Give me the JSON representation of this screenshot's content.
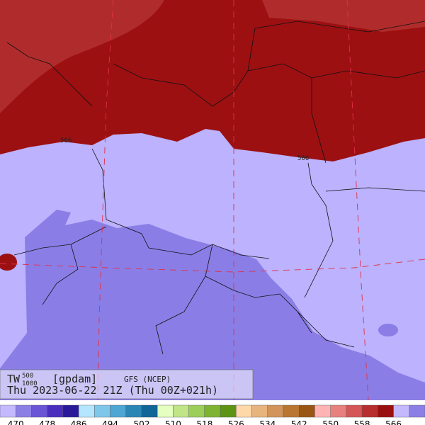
{
  "map": {
    "contour_labels": [
      "566",
      "566"
    ],
    "info": {
      "variable": "TW",
      "upper_level": "500",
      "lower_level": "1000",
      "unit": "[gpdam]",
      "model": "GFS (NCEP)",
      "time": "Thu 2023-06-22 21Z (Thu 00Z+021h)"
    },
    "colorbar": {
      "colors": [
        "#c4b8ff",
        "#8b7fe6",
        "#6a55d6",
        "#4a2fbf",
        "#2a1a9a",
        "#b4e6ff",
        "#7ec6ea",
        "#4ea6d2",
        "#2a86b4",
        "#106696",
        "#e4ffc0",
        "#c0e486",
        "#9cce5a",
        "#7eb432",
        "#5e9414",
        "#ffd8aa",
        "#e8b47e",
        "#d2945a",
        "#b87632",
        "#9a5614",
        "#ffb4b4",
        "#e88080",
        "#d45656",
        "#b82e2e",
        "#9a1010",
        "#c4b8ff",
        "#8b7fe6"
      ],
      "labels": [
        470,
        478,
        486,
        494,
        502,
        510,
        518,
        526,
        534,
        542,
        550,
        558,
        566
      ]
    }
  }
}
